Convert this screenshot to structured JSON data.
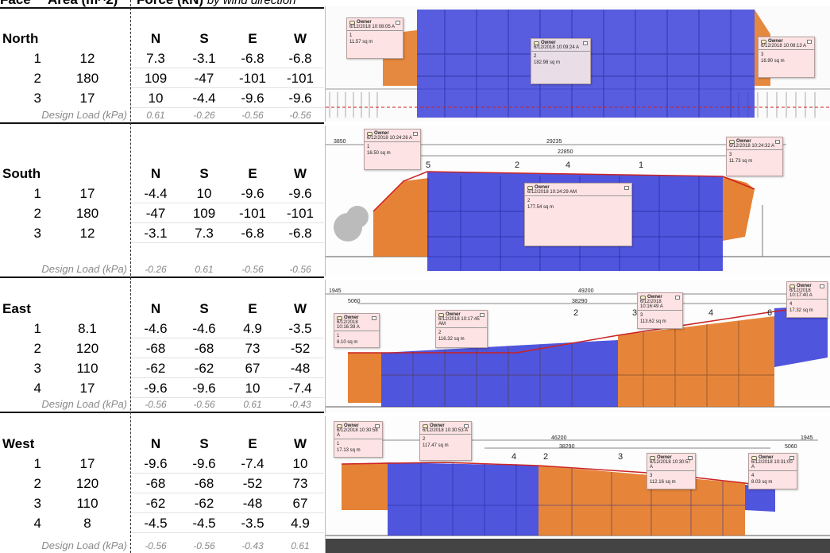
{
  "header": {
    "face": "Face",
    "area": "Area (m^2)",
    "force": "Force (kN)",
    "force_note": "by wind direction"
  },
  "design_load_label": "Design Load (kPa)",
  "faces": [
    {
      "name": "North",
      "cols": [
        "N",
        "S",
        "E",
        "W"
      ],
      "rows": [
        {
          "i": "1",
          "area": "12",
          "vals": [
            "7.3",
            "-3.1",
            "-6.8",
            "-6.8"
          ]
        },
        {
          "i": "2",
          "area": "180",
          "vals": [
            "109",
            "-47",
            "-101",
            "-101"
          ]
        },
        {
          "i": "3",
          "area": "17",
          "vals": [
            "10",
            "-4.4",
            "-9.6",
            "-9.6"
          ]
        }
      ],
      "design": [
        "0.61",
        "-0.26",
        "-0.56",
        "-0.56"
      ]
    },
    {
      "name": "South",
      "cols": [
        "N",
        "S",
        "E",
        "W"
      ],
      "rows": [
        {
          "i": "1",
          "area": "17",
          "vals": [
            "-4.4",
            "10",
            "-9.6",
            "-9.6"
          ]
        },
        {
          "i": "2",
          "area": "180",
          "vals": [
            "-47",
            "109",
            "-101",
            "-101"
          ]
        },
        {
          "i": "3",
          "area": "12",
          "vals": [
            "-3.1",
            "7.3",
            "-6.8",
            "-6.8"
          ]
        }
      ],
      "design": [
        "-0.26",
        "0.61",
        "-0.56",
        "-0.56"
      ]
    },
    {
      "name": "East",
      "cols": [
        "N",
        "S",
        "E",
        "W"
      ],
      "rows": [
        {
          "i": "1",
          "area": "8.1",
          "vals": [
            "-4.6",
            "-4.6",
            "4.9",
            "-3.5"
          ]
        },
        {
          "i": "2",
          "area": "120",
          "vals": [
            "-68",
            "-68",
            "73",
            "-52"
          ]
        },
        {
          "i": "3",
          "area": "110",
          "vals": [
            "-62",
            "-62",
            "67",
            "-48"
          ]
        },
        {
          "i": "4",
          "area": "17",
          "vals": [
            "-9.6",
            "-9.6",
            "10",
            "-7.4"
          ]
        }
      ],
      "design": [
        "-0.56",
        "-0.56",
        "0.61",
        "-0.43"
      ]
    },
    {
      "name": "West",
      "cols": [
        "N",
        "S",
        "E",
        "W"
      ],
      "rows": [
        {
          "i": "1",
          "area": "17",
          "vals": [
            "-9.6",
            "-9.6",
            "-7.4",
            "10"
          ]
        },
        {
          "i": "2",
          "area": "120",
          "vals": [
            "-68",
            "-68",
            "-52",
            "73"
          ]
        },
        {
          "i": "3",
          "area": "110",
          "vals": [
            "-62",
            "-62",
            "-48",
            "67"
          ]
        },
        {
          "i": "4",
          "area": "8",
          "vals": [
            "-4.5",
            "-4.5",
            "-3.5",
            "4.9"
          ]
        }
      ],
      "design": [
        "-0.56",
        "-0.56",
        "-0.43",
        "0.61"
      ]
    }
  ],
  "notes": {
    "author": "Owner",
    "north": [
      {
        "date": "6/12/2018 10:08:05 A",
        "num": "1",
        "area": "11.57 sq m"
      },
      {
        "date": "6/12/2018 10:09:24 A",
        "num": "2",
        "area": "182.98 sq m"
      },
      {
        "date": "6/12/2018 10:08:13 A",
        "num": "3",
        "area": "16.90 sq m"
      }
    ],
    "south": [
      {
        "date": "6/12/2018 10:24:26 A",
        "num": "1",
        "area": "16.50 sq m"
      },
      {
        "date": "6/12/2018 10:24:29 AM",
        "num": "2",
        "area": "177.54 sq m"
      },
      {
        "date": "6/12/2018 10:24:32 A",
        "num": "3",
        "area": "11.73 sq m"
      }
    ],
    "east": [
      {
        "date": "6/12/2018 10:16:39 A",
        "num": "1",
        "area": "8.10 sq m"
      },
      {
        "date": "6/12/2018 10:17:45 AM",
        "num": "2",
        "area": "116.32 sq m"
      },
      {
        "date": "6/12/2018 10:16:49 A",
        "num": "3",
        "area": "113.62 sq m"
      },
      {
        "date": "6/12/2018 10:17:40 A",
        "num": "4",
        "area": "17.32 sq m"
      }
    ],
    "west": [
      {
        "date": "6/12/2018 10:30:58 A",
        "num": "1",
        "area": "17.13 sq m"
      },
      {
        "date": "6/12/2018 10:30:53 A",
        "num": "2",
        "area": "117.47 sq m"
      },
      {
        "date": "6/12/2018 10:30:57 A",
        "num": "3",
        "area": "112.16 sq m"
      },
      {
        "date": "6/12/2018 10:31:00 A",
        "num": "4",
        "area": "8.03 sq m"
      }
    ]
  },
  "dims": {
    "south": [
      "3850",
      "29235",
      "22850"
    ],
    "east": [
      "1945",
      "5060",
      "49200",
      "38290"
    ],
    "west": [
      "46200",
      "38290",
      "1945",
      "5060"
    ]
  },
  "callouts": {
    "south": [
      "5",
      "2",
      "4",
      "1"
    ],
    "east": [
      "2",
      "3",
      "4",
      "6"
    ],
    "west": [
      "4",
      "2",
      "3"
    ]
  },
  "colors": {
    "blue": "#2a2fd6",
    "orange": "#e2741f",
    "red_outline": "#cc2222"
  }
}
